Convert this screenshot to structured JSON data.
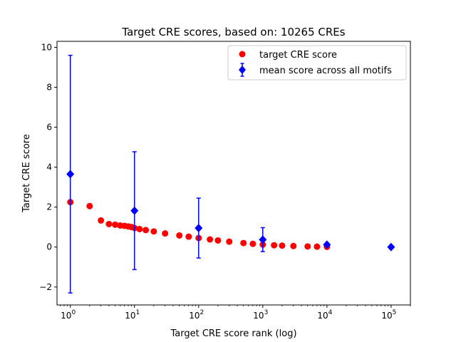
{
  "chart_data": {
    "type": "scatter",
    "title": "Target CRE scores, based on: 10265 CREs",
    "xlabel": "Target CRE score rank (log)",
    "ylabel": "Target CRE score",
    "xscale": "log",
    "xlim": [
      0.62,
      200000
    ],
    "ylim": [
      -2.9,
      10.3
    ],
    "xticks": [
      {
        "value": 1,
        "base": "10",
        "exp": "0"
      },
      {
        "value": 10,
        "base": "10",
        "exp": "1"
      },
      {
        "value": 100,
        "base": "10",
        "exp": "2"
      },
      {
        "value": 1000,
        "base": "10",
        "exp": "3"
      },
      {
        "value": 10000,
        "base": "10",
        "exp": "4"
      },
      {
        "value": 100000,
        "base": "10",
        "exp": "5"
      }
    ],
    "yticks": [
      {
        "value": -2,
        "label": "−2"
      },
      {
        "value": 0,
        "label": "0"
      },
      {
        "value": 2,
        "label": "2"
      },
      {
        "value": 4,
        "label": "4"
      },
      {
        "value": 6,
        "label": "6"
      },
      {
        "value": 8,
        "label": "8"
      },
      {
        "value": 10,
        "label": "10"
      }
    ],
    "grid": false,
    "legend_position": "top-right",
    "series": [
      {
        "name": "target CRE score",
        "kind": "points",
        "color": "#ff0000",
        "marker": "circle",
        "x": [
          1,
          2,
          3,
          4,
          5,
          6,
          7,
          8,
          9,
          10,
          12,
          15,
          20,
          30,
          50,
          70,
          100,
          150,
          200,
          300,
          500,
          700,
          1000,
          1500,
          2000,
          3000,
          5000,
          7000,
          10000
        ],
        "y": [
          2.25,
          2.05,
          1.33,
          1.15,
          1.12,
          1.08,
          1.06,
          1.03,
          1.0,
          0.95,
          0.9,
          0.85,
          0.78,
          0.68,
          0.58,
          0.52,
          0.45,
          0.38,
          0.33,
          0.27,
          0.2,
          0.16,
          0.12,
          0.09,
          0.07,
          0.05,
          0.03,
          0.02,
          0.01
        ]
      },
      {
        "name": "mean score across all motifs",
        "kind": "errorbar",
        "color": "#0000ff",
        "marker": "diamond",
        "x": [
          1,
          10,
          100,
          1000,
          10000,
          100000
        ],
        "y": [
          3.65,
          1.82,
          0.95,
          0.37,
          0.12,
          0.0
        ],
        "yerr": [
          5.95,
          2.95,
          1.5,
          0.6,
          0.06,
          0.0
        ]
      }
    ]
  }
}
